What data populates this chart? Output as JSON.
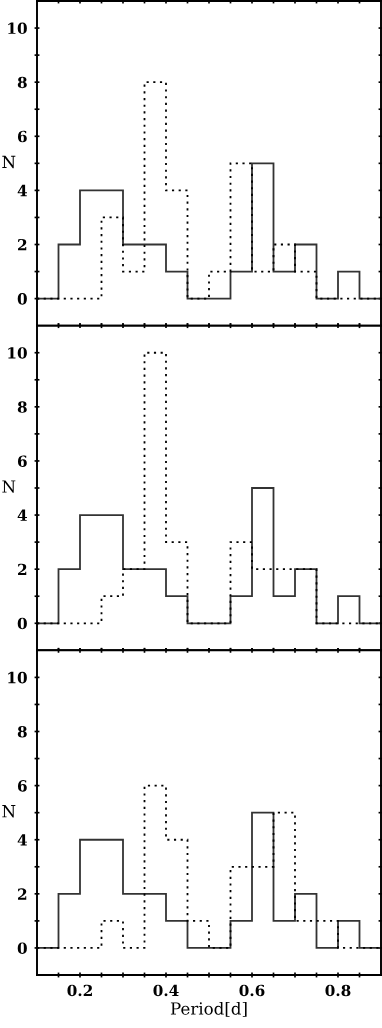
{
  "chart_data": [
    {
      "type": "histogram",
      "ylabel": "N",
      "bins": [
        0.1,
        0.15,
        0.2,
        0.25,
        0.3,
        0.35,
        0.4,
        0.45,
        0.5,
        0.55,
        0.6,
        0.65,
        0.7,
        0.75,
        0.8,
        0.85,
        0.9
      ],
      "xlim": [
        0.1,
        0.9
      ],
      "ylim": [
        -1,
        11
      ],
      "xticks": [
        {
          "value": 0.15,
          "label": null
        },
        {
          "value": 0.2,
          "label": null
        },
        {
          "value": 0.25,
          "label": null
        },
        {
          "value": 0.3,
          "label": null
        },
        {
          "value": 0.35,
          "label": null
        },
        {
          "value": 0.4,
          "label": null
        },
        {
          "value": 0.45,
          "label": null
        },
        {
          "value": 0.5,
          "label": null
        },
        {
          "value": 0.55,
          "label": null
        },
        {
          "value": 0.6,
          "label": null
        },
        {
          "value": 0.65,
          "label": null
        },
        {
          "value": 0.7,
          "label": null
        },
        {
          "value": 0.75,
          "label": null
        },
        {
          "value": 0.8,
          "label": null
        },
        {
          "value": 0.85,
          "label": null
        }
      ],
      "yticks": [
        0,
        {
          "value": 1,
          "label": null
        },
        2,
        {
          "value": 3,
          "label": null
        },
        4,
        {
          "value": 5,
          "label": null
        },
        6,
        {
          "value": 7,
          "label": null
        },
        8,
        {
          "value": 9,
          "label": null
        },
        10
      ],
      "tick_labels": "y",
      "grid": false,
      "legend": false,
      "series": [
        {
          "color": "#333333",
          "line_style": "solid",
          "values": [
            0,
            2,
            4,
            4,
            2,
            2,
            1,
            0,
            0,
            1,
            5,
            1,
            2,
            0,
            1,
            0
          ]
        },
        {
          "color": "#000000",
          "line_style": "dotted",
          "values": [
            0,
            0,
            0,
            3,
            1,
            8,
            4,
            0,
            1,
            5,
            1,
            2,
            1,
            0,
            0,
            0
          ]
        }
      ]
    },
    {
      "type": "histogram",
      "ylabel": "N",
      "bins": [
        0.1,
        0.15,
        0.2,
        0.25,
        0.3,
        0.35,
        0.4,
        0.45,
        0.5,
        0.55,
        0.6,
        0.65,
        0.7,
        0.75,
        0.8,
        0.85,
        0.9
      ],
      "xlim": [
        0.1,
        0.9
      ],
      "ylim": [
        -1,
        11
      ],
      "xticks": [
        {
          "value": 0.15,
          "label": null
        },
        {
          "value": 0.2,
          "label": null
        },
        {
          "value": 0.25,
          "label": null
        },
        {
          "value": 0.3,
          "label": null
        },
        {
          "value": 0.35,
          "label": null
        },
        {
          "value": 0.4,
          "label": null
        },
        {
          "value": 0.45,
          "label": null
        },
        {
          "value": 0.5,
          "label": null
        },
        {
          "value": 0.55,
          "label": null
        },
        {
          "value": 0.6,
          "label": null
        },
        {
          "value": 0.65,
          "label": null
        },
        {
          "value": 0.7,
          "label": null
        },
        {
          "value": 0.75,
          "label": null
        },
        {
          "value": 0.8,
          "label": null
        },
        {
          "value": 0.85,
          "label": null
        }
      ],
      "yticks": [
        0,
        {
          "value": 1,
          "label": null
        },
        2,
        {
          "value": 3,
          "label": null
        },
        4,
        {
          "value": 5,
          "label": null
        },
        6,
        {
          "value": 7,
          "label": null
        },
        8,
        {
          "value": 9,
          "label": null
        },
        10
      ],
      "tick_labels": "y",
      "grid": false,
      "legend": false,
      "series": [
        {
          "color": "#333333",
          "line_style": "solid",
          "values": [
            0,
            2,
            4,
            4,
            2,
            2,
            1,
            0,
            0,
            1,
            5,
            1,
            2,
            0,
            1,
            0
          ]
        },
        {
          "color": "#000000",
          "line_style": "dotted",
          "values": [
            0,
            0,
            0,
            1,
            2,
            10,
            3,
            0,
            0,
            3,
            2,
            2,
            2,
            0,
            0,
            0
          ]
        }
      ]
    },
    {
      "type": "histogram",
      "ylabel": "N",
      "xlabel": "Period[d]",
      "bins": [
        0.1,
        0.15,
        0.2,
        0.25,
        0.3,
        0.35,
        0.4,
        0.45,
        0.5,
        0.55,
        0.6,
        0.65,
        0.7,
        0.75,
        0.8,
        0.85,
        0.9
      ],
      "xlim": [
        0.1,
        0.9
      ],
      "ylim": [
        -1,
        11
      ],
      "xticks": [
        {
          "value": 0.15,
          "label": null
        },
        0.2,
        {
          "value": 0.25,
          "label": null
        },
        0.4,
        {
          "value": 0.35,
          "label": null
        },
        {
          "value": 0.3,
          "label": null
        },
        {
          "value": 0.45,
          "label": null
        },
        {
          "value": 0.5,
          "label": null
        },
        {
          "value": 0.55,
          "label": null
        },
        0.6,
        {
          "value": 0.65,
          "label": null
        },
        {
          "value": 0.7,
          "label": null
        },
        {
          "value": 0.75,
          "label": null
        },
        0.8,
        {
          "value": 0.85,
          "label": null
        }
      ],
      "yticks": [
        0,
        {
          "value": 1,
          "label": null
        },
        2,
        {
          "value": 3,
          "label": null
        },
        4,
        {
          "value": 5,
          "label": null
        },
        6,
        {
          "value": 7,
          "label": null
        },
        8,
        {
          "value": 9,
          "label": null
        },
        10
      ],
      "grid": false,
      "legend": false,
      "series": [
        {
          "color": "#333333",
          "line_style": "solid",
          "values": [
            0,
            2,
            4,
            4,
            2,
            2,
            1,
            0,
            0,
            1,
            5,
            1,
            2,
            0,
            1,
            0
          ]
        },
        {
          "color": "#000000",
          "line_style": "dotted",
          "values": [
            0,
            0,
            0,
            1,
            0,
            6,
            4,
            1,
            0,
            3,
            3,
            5,
            1,
            1,
            0,
            0
          ]
        }
      ]
    }
  ]
}
